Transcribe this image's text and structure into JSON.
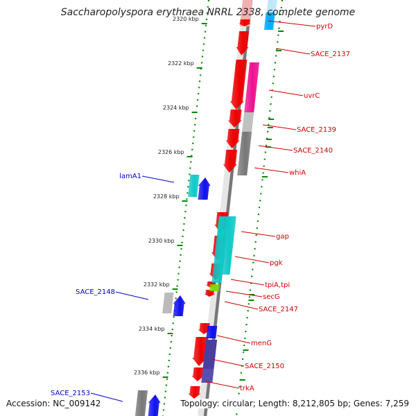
{
  "title": "Saccharopolyspora erythraea NRRL 2338, complete genome",
  "footer": {
    "accession": "Accession: NC_009142",
    "summary": "Topology: circular; Length: 8,212,805 bp; Genes: 7,259"
  },
  "colors": {
    "forward_cds": "#ee0000",
    "cyan_feature": "#10c8c8",
    "blue_feature": "#1010ee",
    "magenta_feature": "#ee1090",
    "grey_feature": "#777777",
    "light_blue_feature": "#00aaff",
    "lime_feature": "#77dd00",
    "label_red": "#cc0000",
    "label_blue": "#0000cc",
    "backbone": "#777777",
    "tick_green": "#008800"
  },
  "scale": {
    "unit": "kbp",
    "ticks": [
      "2320 kbp",
      "2322 kbp",
      "2324 kbp",
      "2326 kbp",
      "2328 kbp",
      "2330 kbp",
      "2332 kbp",
      "2334 kbp",
      "2336 kbp"
    ]
  },
  "genes": {
    "right": [
      "pyrD",
      "SACE_2137",
      "uvrC",
      "SACE_2139",
      "SACE_2140",
      "whiA",
      "gap",
      "pgk",
      "tpiA,tpi",
      "secG",
      "SACE_2147",
      "menG",
      "SACE_2150",
      "trkA"
    ],
    "left": [
      "lamA1",
      "SACE_2148",
      "SACE_2153"
    ]
  }
}
